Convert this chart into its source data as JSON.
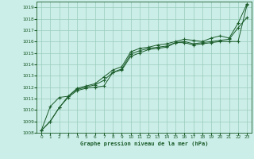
{
  "xlabel": "Graphe pression niveau de la mer (hPa)",
  "xlim": [
    -0.5,
    23.5
  ],
  "ylim": [
    1008,
    1019.5
  ],
  "yticks": [
    1008,
    1009,
    1010,
    1011,
    1012,
    1013,
    1014,
    1015,
    1016,
    1017,
    1018,
    1019
  ],
  "xticks": [
    0,
    1,
    2,
    3,
    4,
    5,
    6,
    7,
    8,
    9,
    10,
    11,
    12,
    13,
    14,
    15,
    16,
    17,
    18,
    19,
    20,
    21,
    22,
    23
  ],
  "background_color": "#cceee8",
  "grid_color": "#99ccbb",
  "line_color": "#1a5c2a",
  "line1_x": [
    0,
    1,
    2,
    3,
    4,
    5,
    6,
    7,
    8,
    9,
    10,
    11,
    12,
    13,
    14,
    15,
    16,
    17,
    18,
    19,
    20,
    21,
    22,
    23
  ],
  "line1_y": [
    1008.2,
    1009.0,
    1010.2,
    1011.1,
    1011.7,
    1011.9,
    1012.0,
    1012.1,
    1013.3,
    1013.5,
    1014.7,
    1015.0,
    1015.3,
    1015.4,
    1015.5,
    1015.9,
    1015.9,
    1015.7,
    1015.8,
    1015.9,
    1016.0,
    1016.0,
    1016.0,
    1019.2
  ],
  "line2_x": [
    0,
    1,
    2,
    3,
    4,
    5,
    6,
    7,
    8,
    9,
    10,
    11,
    12,
    13,
    14,
    15,
    16,
    17,
    18,
    19,
    20,
    21,
    22,
    23
  ],
  "line2_y": [
    1008.2,
    1009.0,
    1010.2,
    1011.2,
    1011.8,
    1012.0,
    1012.2,
    1012.6,
    1013.3,
    1013.6,
    1014.9,
    1015.2,
    1015.4,
    1015.5,
    1015.6,
    1015.9,
    1016.0,
    1015.8,
    1015.9,
    1016.0,
    1016.1,
    1016.2,
    1017.2,
    1018.1
  ],
  "line3_x": [
    0,
    1,
    2,
    3,
    4,
    5,
    6,
    7,
    8,
    9,
    10,
    11,
    12,
    13,
    14,
    15,
    16,
    17,
    18,
    19,
    20,
    21,
    22,
    23
  ],
  "line3_y": [
    1008.2,
    1010.3,
    1011.1,
    1011.2,
    1011.9,
    1012.1,
    1012.3,
    1012.9,
    1013.5,
    1013.8,
    1015.1,
    1015.4,
    1015.5,
    1015.7,
    1015.8,
    1016.0,
    1016.2,
    1016.1,
    1016.0,
    1016.3,
    1016.5,
    1016.3,
    1017.6,
    1019.3
  ]
}
